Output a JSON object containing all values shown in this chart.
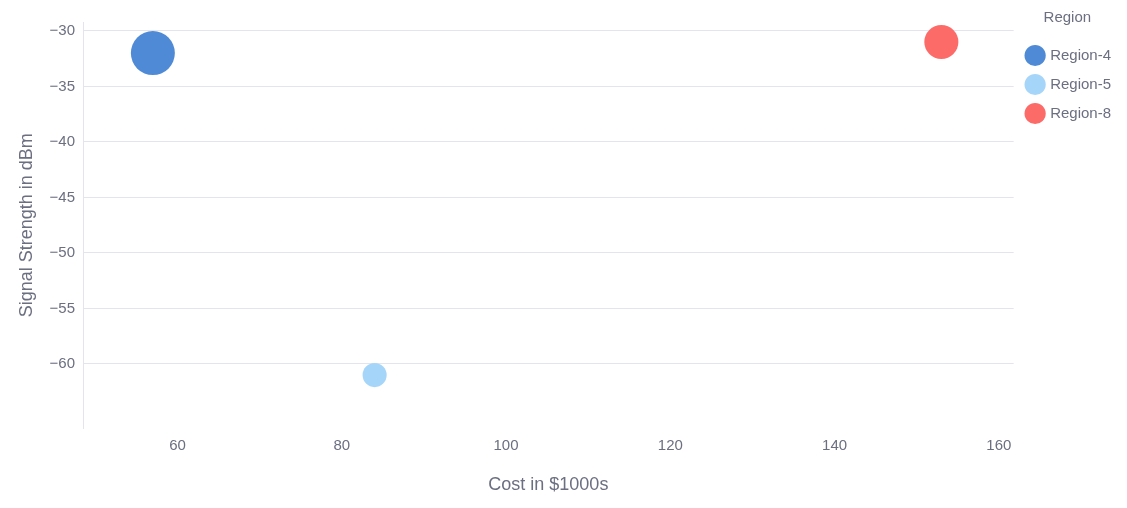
{
  "chart_data": {
    "type": "bubble",
    "xlabel": "Cost in $1000s",
    "ylabel": "Signal Strength in dBm",
    "legend_title": "Region",
    "legend": "top right",
    "grid": "y",
    "xlim": [
      48.5,
      161.8
    ],
    "xticks": [
      60,
      80,
      100,
      120,
      140,
      160
    ],
    "ylim": [
      -65.8,
      -29.2
    ],
    "yticks": [
      {
        "value": -30,
        "label": "−30"
      },
      {
        "value": -35,
        "label": "−35"
      },
      {
        "value": -40,
        "label": "−40"
      },
      {
        "value": -45,
        "label": "−45"
      },
      {
        "value": -50,
        "label": "−50"
      },
      {
        "value": -55,
        "label": "−55"
      },
      {
        "value": -60,
        "label": "−60"
      }
    ],
    "series": [
      {
        "name": "Region-4",
        "color": "#4f8ad6",
        "x": [
          57
        ],
        "values": [
          -32
        ],
        "sizes": [
          1
        ]
      },
      {
        "name": "Region-5",
        "color": "#a6d5fa",
        "x": [
          84
        ],
        "values": [
          -61
        ],
        "sizes": [
          0.3
        ]
      },
      {
        "name": "Region-8",
        "color": "#fd6b68",
        "x": [
          153
        ],
        "values": [
          -31
        ],
        "sizes": [
          0.6
        ]
      }
    ]
  }
}
